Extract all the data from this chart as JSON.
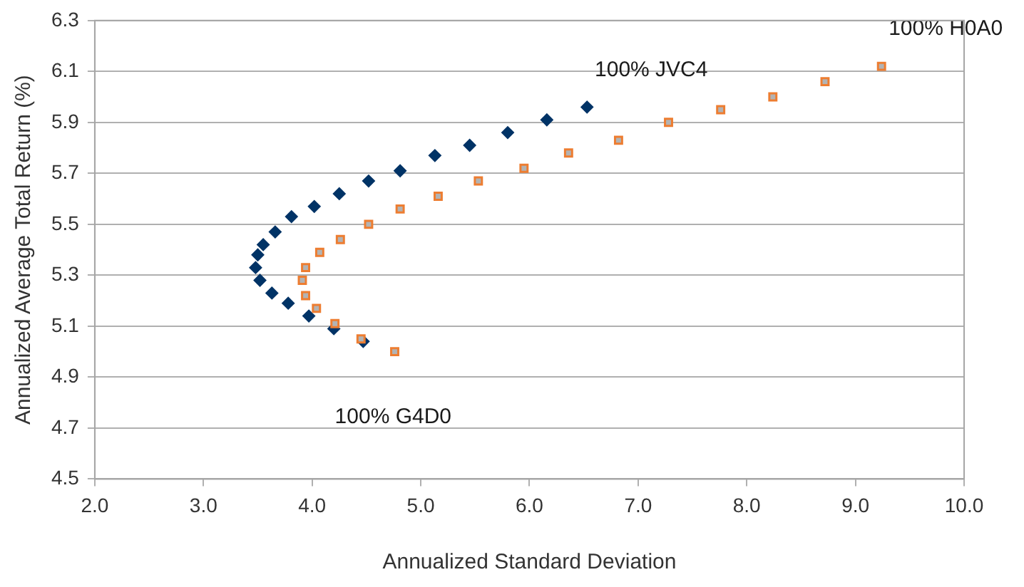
{
  "chart_data": {
    "type": "scatter",
    "xlabel": "Annualized Standard Deviation",
    "ylabel": "Annualized Average Total Return (%)",
    "xlim": [
      2.0,
      10.0
    ],
    "xticks": [
      {
        "value": 2,
        "label": "2.0"
      },
      {
        "value": 3,
        "label": "3.0"
      },
      {
        "value": 4,
        "label": "4.0"
      },
      {
        "value": 5,
        "label": "5.0"
      },
      {
        "value": 6,
        "label": "6.0"
      },
      {
        "value": 7,
        "label": "7.0"
      },
      {
        "value": 8,
        "label": "8.0"
      },
      {
        "value": 9,
        "label": "9.0"
      },
      {
        "value": 10,
        "label": "10.0"
      }
    ],
    "ylim": [
      4.5,
      6.3
    ],
    "yticks": [
      4.5,
      4.7,
      4.9,
      5.1,
      5.3,
      5.5,
      5.7,
      5.9,
      6.1,
      6.3
    ],
    "grid": "y",
    "legend": false,
    "series": [
      {
        "color": "#003366",
        "marker": "diamond",
        "x": [
          6.53,
          6.16,
          5.8,
          5.45,
          5.13,
          4.81,
          4.52,
          4.25,
          4.02,
          3.81,
          3.66,
          3.55,
          3.5,
          3.48,
          3.52,
          3.63,
          3.78,
          3.97,
          4.2,
          4.47
        ],
        "values": [
          5.96,
          5.91,
          5.86,
          5.81,
          5.77,
          5.71,
          5.67,
          5.62,
          5.57,
          5.53,
          5.47,
          5.42,
          5.38,
          5.33,
          5.28,
          5.23,
          5.19,
          5.14,
          5.09,
          5.04
        ]
      },
      {
        "color": "#ed7d31",
        "marker": "square",
        "x": [
          9.24,
          8.72,
          8.24,
          7.76,
          7.28,
          6.82,
          6.36,
          5.95,
          5.53,
          5.16,
          4.81,
          4.52,
          4.26,
          4.07,
          3.94,
          3.91,
          3.94,
          4.04,
          4.21,
          4.45,
          4.76
        ],
        "values": [
          6.12,
          6.06,
          6.0,
          5.95,
          5.9,
          5.83,
          5.78,
          5.72,
          5.67,
          5.61,
          5.56,
          5.5,
          5.44,
          5.39,
          5.33,
          5.28,
          5.22,
          5.17,
          5.11,
          5.05,
          5.0
        ]
      }
    ],
    "annotations": [
      {
        "text": "100% JVC4",
        "x": 6.53,
        "y": 5.96
      },
      {
        "text": "100% H0A0",
        "x": 9.24,
        "y": 6.12
      },
      {
        "text": "100% G4D0",
        "x": 4.47,
        "y": 5.04
      }
    ]
  }
}
